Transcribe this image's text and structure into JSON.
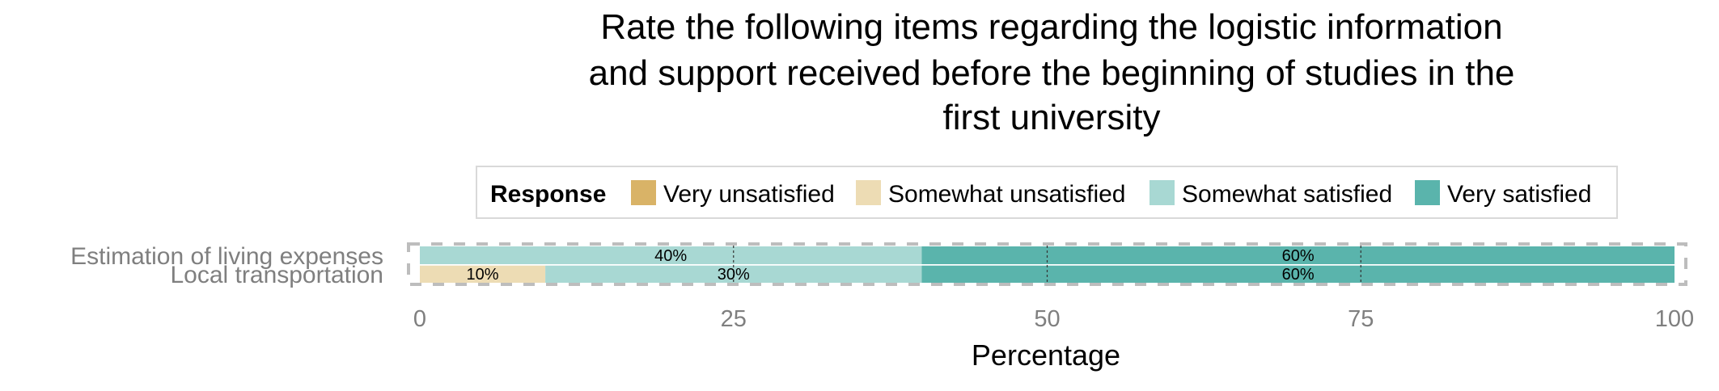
{
  "chart_data": {
    "type": "bar",
    "orientation": "horizontal",
    "stacked": true,
    "title_lines": [
      "Rate the following items regarding the logistic information",
      "and support received before the beginning of studies in the",
      "first university"
    ],
    "xlabel": "Percentage",
    "ylabel": "",
    "xlim": [
      0,
      100
    ],
    "xticks": [
      "0",
      "25",
      "50",
      "75",
      "100"
    ],
    "legend": {
      "title": "Response",
      "position": "top",
      "entries": [
        "Very unsatisfied",
        "Somewhat unsatisfied",
        "Somewhat satisfied",
        "Very satisfied"
      ]
    },
    "colors": {
      "Very unsatisfied": "#d9b367",
      "Somewhat unsatisfied": "#eddcb4",
      "Somewhat satisfied": "#a8d8d3",
      "Very satisfied": "#5ab4ac"
    },
    "categories": [
      "Estimation of living expenses",
      "Local transportation"
    ],
    "series": [
      {
        "name": "Very unsatisfied",
        "values": [
          0,
          0
        ]
      },
      {
        "name": "Somewhat unsatisfied",
        "values": [
          0,
          10
        ]
      },
      {
        "name": "Somewhat satisfied",
        "values": [
          40,
          30
        ]
      },
      {
        "name": "Very satisfied",
        "values": [
          60,
          60
        ]
      }
    ],
    "data_labels": [
      [
        "",
        "",
        "40%",
        "60%"
      ],
      [
        "",
        "10%",
        "30%",
        "60%"
      ]
    ],
    "reference_lines": [
      25,
      50,
      75
    ],
    "grid": true
  }
}
